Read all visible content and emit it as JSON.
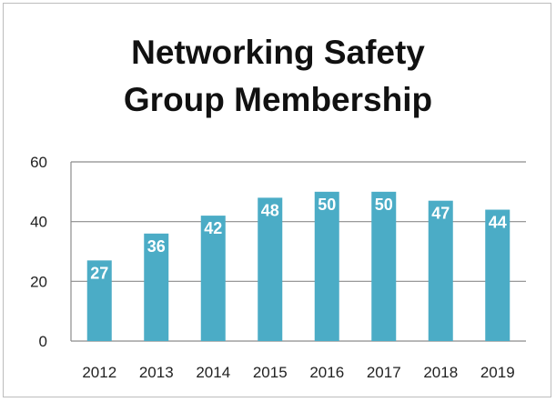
{
  "chart_data": {
    "type": "bar",
    "title_line1": "Networking Safety",
    "title_line2": "Group Membership",
    "categories": [
      "2012",
      "2013",
      "2014",
      "2015",
      "2016",
      "2017",
      "2018",
      "2019"
    ],
    "values": [
      27,
      36,
      42,
      48,
      50,
      50,
      47,
      44
    ],
    "ylim": [
      0,
      60
    ],
    "yticks": [
      0,
      20,
      40,
      60
    ],
    "grid": true,
    "bar_color": "#4bacc6",
    "data_labels": true
  }
}
